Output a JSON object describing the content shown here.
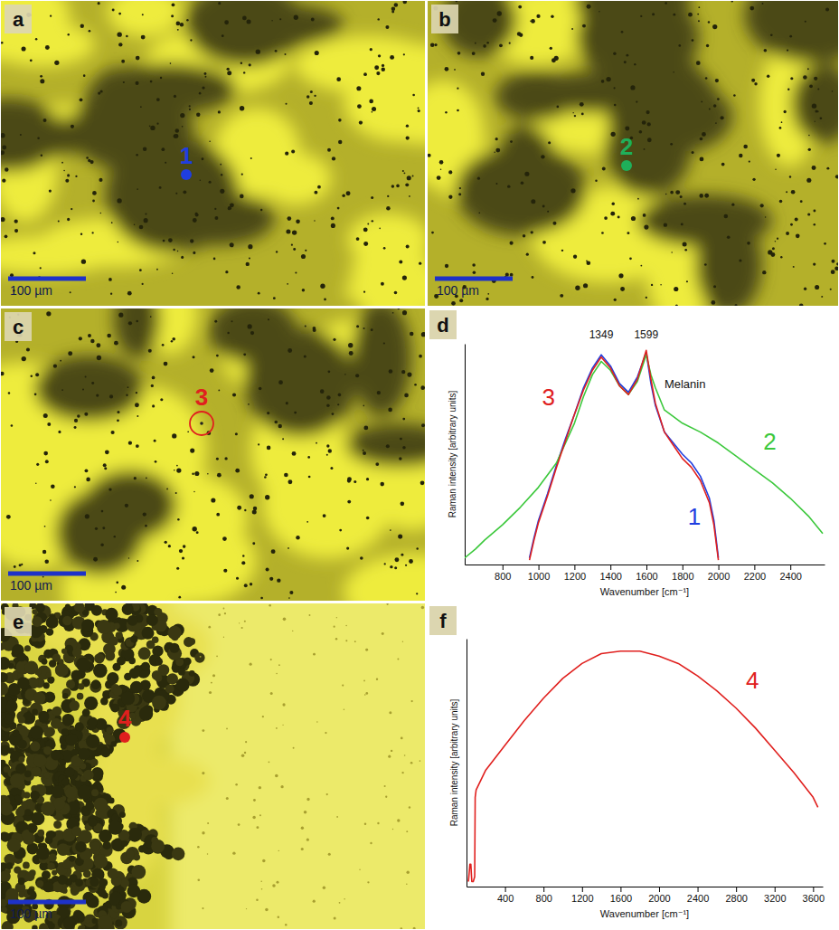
{
  "images": [
    {
      "panel": "a",
      "scale_bar": "100 µm",
      "points": [
        {
          "label": "1",
          "color": "#1f3ee0",
          "marker": "dot"
        }
      ]
    },
    {
      "panel": "b",
      "scale_bar": "100 µm",
      "points": [
        {
          "label": "2",
          "color": "#1faf5a",
          "marker": "dot"
        }
      ]
    },
    {
      "panel": "c",
      "scale_bar": "100 µm",
      "points": [
        {
          "label": "3",
          "color": "#e0201e",
          "marker": "circle"
        }
      ]
    },
    {
      "panel": "e",
      "scale_bar": "100 µm",
      "points": [
        {
          "label": "4",
          "color": "#e0201e",
          "marker": "dot"
        }
      ]
    }
  ],
  "chart_data": [
    {
      "type": "line",
      "panel": "d",
      "xlabel": "Wavenumber [cm⁻¹]",
      "ylabel": "Raman intensity [arbitrary units]",
      "xlim": [
        590,
        2590
      ],
      "ylim": [
        0,
        100
      ],
      "xticks": [
        800,
        1000,
        1200,
        1400,
        1600,
        1800,
        2000,
        2200,
        2400
      ],
      "yticks": [],
      "tick_labels": "x",
      "grid": false,
      "peaks": [
        1349,
        1599
      ],
      "annotations": [
        "Melanin"
      ],
      "series": [
        {
          "name": "1",
          "color": "#1f3ee0",
          "x": [
            950,
            975,
            1000,
            1050,
            1100,
            1150,
            1200,
            1250,
            1300,
            1349,
            1400,
            1450,
            1500,
            1550,
            1599,
            1625,
            1650,
            1700,
            1750,
            1800,
            1850,
            1900,
            1950,
            1975,
            2000
          ],
          "values": [
            3,
            12,
            20,
            32,
            45,
            57,
            68,
            80,
            89,
            95,
            90,
            82,
            78,
            85,
            96,
            82,
            72,
            60,
            55,
            50,
            46,
            40,
            30,
            20,
            3
          ]
        },
        {
          "name": "2",
          "color": "#3cc83c",
          "x": [
            590,
            650,
            700,
            800,
            900,
            1000,
            1100,
            1200,
            1250,
            1300,
            1349,
            1400,
            1450,
            1500,
            1550,
            1599,
            1625,
            1650,
            1700,
            1800,
            1900,
            2000,
            2100,
            2200,
            2300,
            2400,
            2500,
            2580
          ],
          "values": [
            3,
            7,
            11,
            18,
            26,
            35,
            46,
            64,
            76,
            86,
            92,
            88,
            81,
            77,
            83,
            95,
            86,
            80,
            70,
            64,
            60,
            55,
            49,
            43,
            37,
            30,
            22,
            14
          ]
        },
        {
          "name": "3",
          "color": "#e0201e",
          "x": [
            950,
            975,
            1000,
            1050,
            1100,
            1150,
            1200,
            1250,
            1300,
            1349,
            1400,
            1450,
            1500,
            1550,
            1599,
            1625,
            1650,
            1700,
            1750,
            1800,
            1850,
            1900,
            1950,
            1975,
            2000
          ],
          "values": [
            2,
            11,
            19,
            31,
            44,
            56,
            68,
            79,
            88,
            94,
            89,
            81,
            77,
            84,
            97,
            84,
            73,
            60,
            54,
            48,
            44,
            38,
            28,
            18,
            2
          ]
        }
      ]
    },
    {
      "type": "line",
      "panel": "f",
      "xlabel": "Wavenumber [cm⁻¹]",
      "ylabel": "Raman intensity [arbitrary units]",
      "xlim": [
        0,
        3700
      ],
      "ylim": [
        0,
        100
      ],
      "xticks": [
        400,
        800,
        1200,
        1600,
        2000,
        2400,
        2800,
        3200,
        3600
      ],
      "yticks": [],
      "tick_labels": "x",
      "grid": false,
      "series": [
        {
          "name": "4",
          "color": "#e0201e",
          "x": [
            20,
            35,
            45,
            55,
            70,
            85,
            90,
            100,
            200,
            400,
            600,
            800,
            1000,
            1200,
            1400,
            1600,
            1800,
            2000,
            2200,
            2400,
            2600,
            2800,
            3000,
            3200,
            3400,
            3600,
            3650
          ],
          "values": [
            2,
            9,
            9,
            2,
            2,
            4,
            36,
            39,
            47,
            57,
            67,
            76,
            84,
            90,
            94,
            95,
            95,
            93,
            90,
            85,
            79,
            72,
            64,
            55,
            46,
            36,
            32
          ]
        }
      ]
    }
  ]
}
